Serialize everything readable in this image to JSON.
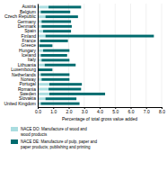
{
  "chart_data": {
    "type": "bar",
    "orientation": "horizontal",
    "stacked": true,
    "categories": [
      "Austria",
      "Belgium",
      "Czech Republic",
      "Germany",
      "Denmark",
      "Spain",
      "Finland",
      "France",
      "Greece",
      "Hungary",
      "Iceland",
      "Italy",
      "Lithuania",
      "Luxembourg",
      "Netherlands",
      "Norway",
      "Portugal",
      "Romania",
      "Sweden",
      "Slovakia",
      "United Kingdom"
    ],
    "series": [
      {
        "name": "NACE DO: Manufacture of wood and\nwood products",
        "color": "#aadde0",
        "values": [
          0.7,
          0.2,
          0.5,
          0.25,
          0.25,
          0.35,
          0.5,
          0.15,
          0.1,
          0.35,
          0.2,
          0.25,
          0.45,
          0.05,
          0.2,
          0.25,
          0.75,
          0.7,
          0.75,
          0.5,
          0.2
        ]
      },
      {
        "name": "NACE DE: Manufacture of pulp, paper and\npaper products; publishing and printing",
        "color": "#006b6e",
        "values": [
          2.1,
          1.9,
          2.1,
          1.9,
          1.95,
          1.8,
          7.0,
          1.8,
          0.85,
          1.7,
          1.7,
          1.8,
          2.0,
          0.9,
          1.85,
          1.8,
          2.1,
          2.1,
          3.6,
          2.0,
          2.5
        ]
      }
    ],
    "xlabel": "Percentage of total gross value added",
    "xlim": [
      0,
      8.0
    ],
    "xticks": [
      {
        "value": 0.0,
        "label": "0.0"
      },
      {
        "value": 1.0,
        "label": "1.0"
      },
      {
        "value": 2.0,
        "label": "2.0"
      },
      {
        "value": 3.0,
        "label": "3.0"
      },
      {
        "value": 4.0,
        "label": "4.0"
      },
      {
        "value": 5.0,
        "label": "5.0"
      },
      {
        "value": 6.0,
        "label": "6.0"
      },
      {
        "value": 7.0,
        "label": "7.0"
      },
      {
        "value": 8.0,
        "label": "8.0"
      }
    ],
    "grid": true,
    "legend": "bottom"
  }
}
